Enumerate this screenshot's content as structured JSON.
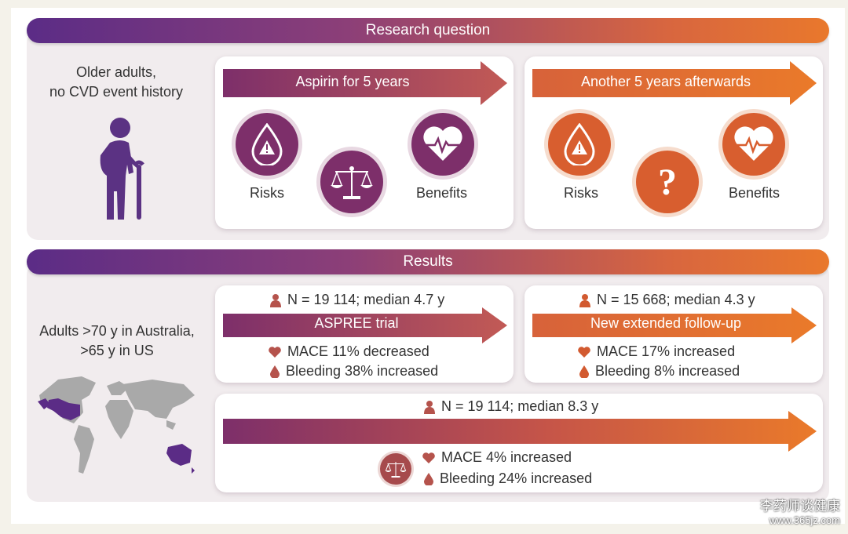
{
  "research": {
    "title": "Research question",
    "population": "Older adults,\nno CVD event history",
    "card1": {
      "arrow": "Aspirin for 5 years",
      "risks": "Risks",
      "benefits": "Benefits"
    },
    "card2": {
      "arrow": "Another 5 years afterwards",
      "risks": "Risks",
      "benefits": "Benefits",
      "unknown": "?"
    }
  },
  "results": {
    "title": "Results",
    "population": "Adults >70 y in Australia,\n>65 y in US",
    "aspree": {
      "n": "N = 19 114; median 4.7 y",
      "arrow": "ASPREE trial",
      "mace": "MACE 11% decreased",
      "bleeding": "Bleeding 38% increased"
    },
    "extended": {
      "n": "N = 15 668; median 4.3 y",
      "arrow": "New extended follow-up",
      "mace": "MACE 17% increased",
      "bleeding": "Bleeding 8% increased"
    },
    "combined": {
      "n": "N = 19 114; median 8.3 y",
      "mace": "MACE 4% increased",
      "bleeding": "Bleeding 24% increased"
    }
  },
  "watermark": {
    "line1": "李药师谈健康",
    "line2": "www.365jz.com"
  },
  "colors": {
    "purple": "#7d2f6a",
    "orange": "#d85e2f",
    "gradient_start": "#5b2c86",
    "gradient_end": "#e9782c"
  },
  "icons": [
    "elderly-person-icon",
    "blood-drop-warning-icon",
    "heart-pulse-icon",
    "balance-scale-icon",
    "question-mark-icon",
    "person-icon",
    "heart-icon",
    "drop-icon",
    "world-map-icon"
  ]
}
